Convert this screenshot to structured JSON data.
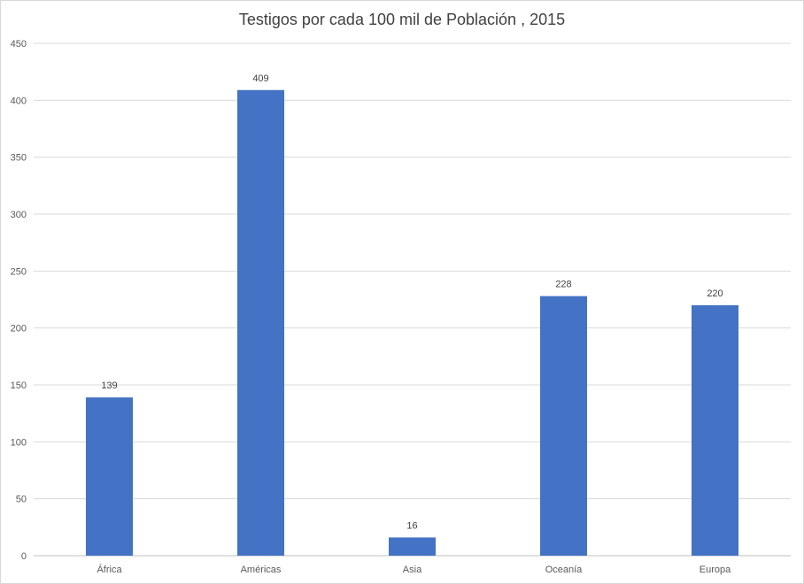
{
  "chart_data": {
    "type": "bar",
    "title": "Testigos por cada 100 mil de Población , 2015",
    "xlabel": "",
    "ylabel": "",
    "categories": [
      "África",
      "Américas",
      "Asia",
      "Oceanía",
      "Europa"
    ],
    "values": [
      139,
      409,
      16,
      228,
      220
    ],
    "data_labels": [
      "139",
      "409",
      "16",
      "228",
      "220"
    ],
    "ylim": [
      0,
      450
    ],
    "yticks": [
      0,
      50,
      100,
      150,
      200,
      250,
      300,
      350,
      400,
      450
    ],
    "grid": true,
    "legend": "none",
    "bar_color": "#4472C4"
  }
}
